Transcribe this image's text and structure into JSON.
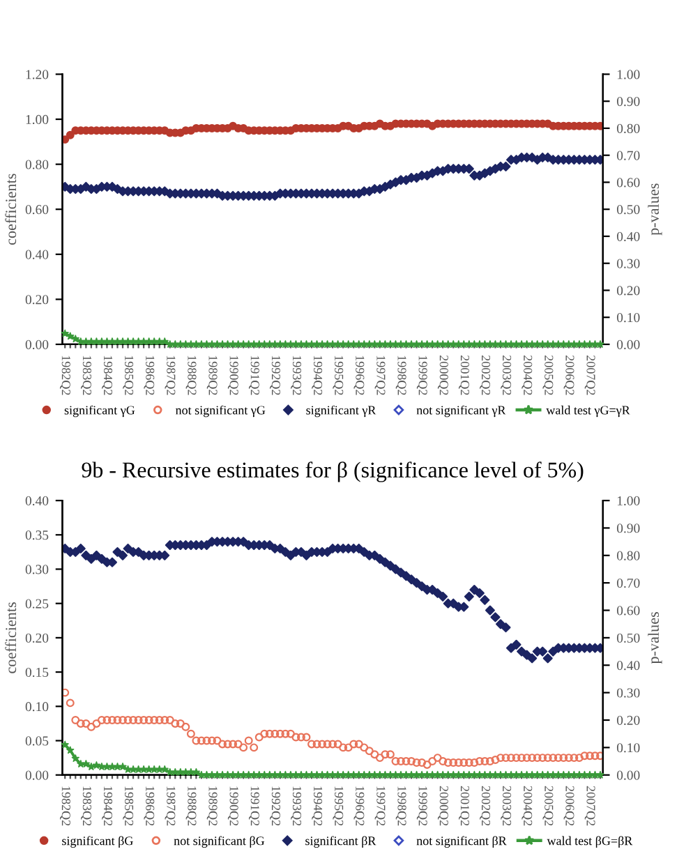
{
  "chart_data": [
    {
      "type": "scatter",
      "ylabel": "coefficients",
      "y2label": "p-values",
      "legend": "bottom",
      "grid": false,
      "categories": [
        "1982Q2",
        null,
        null,
        null,
        "1983Q2",
        null,
        null,
        null,
        "1984Q2",
        null,
        null,
        null,
        "1985Q2",
        null,
        null,
        null,
        "1986Q2",
        null,
        null,
        null,
        "1987Q2",
        null,
        null,
        null,
        "1988Q2",
        null,
        null,
        null,
        "1989Q2",
        null,
        null,
        null,
        "1990Q2",
        null,
        null,
        null,
        "1991Q2",
        null,
        null,
        null,
        "1992Q2",
        null,
        null,
        null,
        "1993Q2",
        null,
        null,
        null,
        "1994Q2",
        null,
        null,
        null,
        "1995Q2",
        null,
        null,
        null,
        "1996Q2",
        null,
        null,
        null,
        "1997Q2",
        null,
        null,
        null,
        "1998Q2",
        null,
        null,
        null,
        "1999Q2",
        null,
        null,
        null,
        "2000Q2",
        null,
        null,
        null,
        "2001Q2",
        null,
        null,
        null,
        "2002Q2",
        null,
        null,
        null,
        "2003Q2",
        null,
        null,
        null,
        "2004Q2",
        null,
        null,
        null,
        "2005Q2",
        null,
        null,
        null,
        "2006Q2",
        null,
        null,
        null,
        "2007Q2",
        null,
        null
      ],
      "ylim": [
        0,
        1.2
      ],
      "yticks": [
        {
          "value": 0,
          "label": "0.00"
        },
        {
          "value": 0.2,
          "label": "0.20"
        },
        {
          "value": 0.4,
          "label": "0.40"
        },
        {
          "value": 0.6,
          "label": "0.60"
        },
        {
          "value": 0.8,
          "label": "0.80"
        },
        {
          "value": 1.0,
          "label": "1.00"
        },
        {
          "value": 1.2,
          "label": "1.20"
        }
      ],
      "y2lim": [
        0,
        1.0
      ],
      "y2ticks": [
        {
          "value": 0,
          "label": "0.00"
        },
        {
          "value": 0.1,
          "label": "0.10"
        },
        {
          "value": 0.2,
          "label": "0.20"
        },
        {
          "value": 0.3,
          "label": "0.30"
        },
        {
          "value": 0.4,
          "label": "0.40"
        },
        {
          "value": 0.5,
          "label": "0.50"
        },
        {
          "value": 0.6,
          "label": "0.60"
        },
        {
          "value": 0.7,
          "label": "0.70"
        },
        {
          "value": 0.8,
          "label": "0.80"
        },
        {
          "value": 0.9,
          "label": "0.90"
        },
        {
          "value": 1.0,
          "label": "1.00"
        }
      ],
      "series": [
        {
          "name": "significant γG",
          "marker": "circle",
          "color": "#b8392c",
          "values": [
            0.91,
            0.93,
            0.95,
            0.95,
            0.95,
            0.95,
            0.95,
            0.95,
            0.95,
            0.95,
            0.95,
            0.95,
            0.95,
            0.95,
            0.95,
            0.95,
            0.95,
            0.95,
            0.95,
            0.95,
            0.94,
            0.94,
            0.94,
            0.95,
            0.95,
            0.96,
            0.96,
            0.96,
            0.96,
            0.96,
            0.96,
            0.96,
            0.97,
            0.96,
            0.96,
            0.95,
            0.95,
            0.95,
            0.95,
            0.95,
            0.95,
            0.95,
            0.95,
            0.95,
            0.96,
            0.96,
            0.96,
            0.96,
            0.96,
            0.96,
            0.96,
            0.96,
            0.96,
            0.97,
            0.97,
            0.96,
            0.96,
            0.97,
            0.97,
            0.97,
            0.98,
            0.97,
            0.97,
            0.98,
            0.98,
            0.98,
            0.98,
            0.98,
            0.98,
            0.98,
            0.97,
            0.98,
            0.98,
            0.98,
            0.98,
            0.98,
            0.98,
            0.98,
            0.98,
            0.98,
            0.98,
            0.98,
            0.98,
            0.98,
            0.98,
            0.98,
            0.98,
            0.98,
            0.98,
            0.98,
            0.98,
            0.98,
            0.98,
            0.97,
            0.97,
            0.97,
            0.97,
            0.97,
            0.97,
            0.97,
            0.97,
            0.97,
            0.97
          ]
        },
        {
          "name": "not significant γG",
          "marker": "circle",
          "color": "#e8735a",
          "values": [
            null,
            null,
            null,
            null,
            null,
            null,
            null,
            null,
            null,
            null,
            null,
            null,
            null,
            null,
            null,
            null,
            null,
            null,
            null,
            null,
            null,
            null,
            null,
            null,
            null,
            null,
            null,
            null,
            null,
            null,
            null,
            null,
            null,
            null,
            null,
            null,
            null,
            null,
            null,
            null,
            null,
            null,
            null,
            null,
            null,
            null,
            null,
            null,
            null,
            null,
            null,
            null,
            null,
            null,
            null,
            null,
            null,
            null,
            null,
            null,
            null,
            null,
            null,
            null,
            null,
            null,
            null,
            null,
            null,
            null,
            null,
            null,
            null,
            null,
            null,
            null,
            null,
            null,
            null,
            null,
            null,
            null,
            null,
            null,
            null,
            null,
            null,
            null,
            null,
            null,
            null,
            null,
            null,
            null,
            null,
            null,
            null,
            null,
            null,
            null,
            null,
            null,
            null
          ]
        },
        {
          "name": "significant γR",
          "marker": "diamond",
          "color": "#1c2463",
          "values": [
            0.7,
            0.69,
            0.69,
            0.69,
            0.7,
            0.69,
            0.69,
            0.7,
            0.7,
            0.7,
            0.69,
            0.68,
            0.68,
            0.68,
            0.68,
            0.68,
            0.68,
            0.68,
            0.68,
            0.68,
            0.67,
            0.67,
            0.67,
            0.67,
            0.67,
            0.67,
            0.67,
            0.67,
            0.67,
            0.67,
            0.66,
            0.66,
            0.66,
            0.66,
            0.66,
            0.66,
            0.66,
            0.66,
            0.66,
            0.66,
            0.66,
            0.67,
            0.67,
            0.67,
            0.67,
            0.67,
            0.67,
            0.67,
            0.67,
            0.67,
            0.67,
            0.67,
            0.67,
            0.67,
            0.67,
            0.67,
            0.67,
            0.68,
            0.68,
            0.69,
            0.69,
            0.7,
            0.71,
            0.72,
            0.73,
            0.73,
            0.74,
            0.74,
            0.75,
            0.75,
            0.76,
            0.77,
            0.77,
            0.78,
            0.78,
            0.78,
            0.78,
            0.78,
            0.75,
            0.75,
            0.76,
            0.77,
            0.78,
            0.79,
            0.79,
            0.82,
            0.82,
            0.83,
            0.83,
            0.83,
            0.82,
            0.83,
            0.83,
            0.82,
            0.82,
            0.82,
            0.82,
            0.82,
            0.82,
            0.82,
            0.82,
            0.82,
            0.82
          ]
        },
        {
          "name": "not significant γR",
          "marker": "diamond",
          "color": "#3b4cc0",
          "values": [
            null,
            null,
            null,
            null,
            null,
            null,
            null,
            null,
            null,
            null,
            null,
            null,
            null,
            null,
            null,
            null,
            null,
            null,
            null,
            null,
            null,
            null,
            null,
            null,
            null,
            null,
            null,
            null,
            null,
            null,
            null,
            null,
            null,
            null,
            null,
            null,
            null,
            null,
            null,
            null,
            null,
            null,
            null,
            null,
            null,
            null,
            null,
            null,
            null,
            null,
            null,
            null,
            null,
            null,
            null,
            null,
            null,
            null,
            null,
            null,
            null,
            null,
            null,
            null,
            null,
            null,
            null,
            null,
            null,
            null,
            null,
            null,
            null,
            null,
            null,
            null,
            null,
            null,
            null,
            null,
            null,
            null,
            null,
            null,
            null,
            null,
            null,
            null,
            null,
            null,
            null,
            null,
            null,
            null,
            null,
            null,
            null,
            null,
            null,
            null,
            null,
            null,
            null
          ]
        },
        {
          "name": "wald test γG=γR",
          "type": "line",
          "axis": "y2",
          "marker": "star",
          "line_style": "solid",
          "color": "#3a9a3a",
          "values": [
            0.04,
            0.03,
            0.02,
            0.01,
            0.01,
            0.01,
            0.01,
            0.01,
            0.01,
            0.01,
            0.01,
            0.01,
            0.01,
            0.01,
            0.01,
            0.01,
            0.01,
            0.01,
            0.01,
            0.01,
            0.0,
            0.0,
            0.0,
            0.0,
            0.0,
            0.0,
            0.0,
            0.0,
            0.0,
            0.0,
            0.0,
            0.0,
            0.0,
            0.0,
            0.0,
            0.0,
            0.0,
            0.0,
            0.0,
            0.0,
            0.0,
            0.0,
            0.0,
            0.0,
            0.0,
            0.0,
            0.0,
            0.0,
            0.0,
            0.0,
            0.0,
            0.0,
            0.0,
            0.0,
            0.0,
            0.0,
            0.0,
            0.0,
            0.0,
            0.0,
            0.0,
            0.0,
            0.0,
            0.0,
            0.0,
            0.0,
            0.0,
            0.0,
            0.0,
            0.0,
            0.0,
            0.0,
            0.0,
            0.0,
            0.0,
            0.0,
            0.0,
            0.0,
            0.0,
            0.0,
            0.0,
            0.0,
            0.0,
            0.0,
            0.0,
            0.0,
            0.0,
            0.0,
            0.0,
            0.0,
            0.0,
            0.0,
            0.0,
            0.0,
            0.0,
            0.0,
            0.0,
            0.0,
            0.0,
            0.0,
            0.0,
            0.0,
            0.0
          ]
        }
      ]
    },
    {
      "type": "scatter",
      "title": "9b - Recursive estimates for β (significance level of 5%)",
      "ylabel": "coefficients",
      "y2label": "p-values",
      "legend": "bottom",
      "grid": false,
      "categories": [
        "1982Q2",
        null,
        null,
        null,
        "1983Q2",
        null,
        null,
        null,
        "1984Q2",
        null,
        null,
        null,
        "1985Q2",
        null,
        null,
        null,
        "1986Q2",
        null,
        null,
        null,
        "1987Q2",
        null,
        null,
        null,
        "1988Q2",
        null,
        null,
        null,
        "1989Q2",
        null,
        null,
        null,
        "1990Q2",
        null,
        null,
        null,
        "1991Q2",
        null,
        null,
        null,
        "1992Q2",
        null,
        null,
        null,
        "1993Q2",
        null,
        null,
        null,
        "1994Q2",
        null,
        null,
        null,
        "1995Q2",
        null,
        null,
        null,
        "1996Q2",
        null,
        null,
        null,
        "1997Q2",
        null,
        null,
        null,
        "1998Q2",
        null,
        null,
        null,
        "1999Q2",
        null,
        null,
        null,
        "2000Q2",
        null,
        null,
        null,
        "2001Q2",
        null,
        null,
        null,
        "2002Q2",
        null,
        null,
        null,
        "2003Q2",
        null,
        null,
        null,
        "2004Q2",
        null,
        null,
        null,
        "2005Q2",
        null,
        null,
        null,
        "2006Q2",
        null,
        null,
        null,
        "2007Q2",
        null,
        null
      ],
      "ylim": [
        0,
        0.4
      ],
      "yticks": [
        {
          "value": 0,
          "label": "0.00"
        },
        {
          "value": 0.05,
          "label": "0.05"
        },
        {
          "value": 0.1,
          "label": "0.10"
        },
        {
          "value": 0.15,
          "label": "0.15"
        },
        {
          "value": 0.2,
          "label": "0.20"
        },
        {
          "value": 0.25,
          "label": "0.25"
        },
        {
          "value": 0.3,
          "label": "0.30"
        },
        {
          "value": 0.35,
          "label": "0.35"
        },
        {
          "value": 0.4,
          "label": "0.40"
        }
      ],
      "y2lim": [
        0,
        1.0
      ],
      "y2ticks": [
        {
          "value": 0,
          "label": "0.00"
        },
        {
          "value": 0.1,
          "label": "0.10"
        },
        {
          "value": 0.2,
          "label": "0.20"
        },
        {
          "value": 0.3,
          "label": "0.30"
        },
        {
          "value": 0.4,
          "label": "0.40"
        },
        {
          "value": 0.5,
          "label": "0.50"
        },
        {
          "value": 0.6,
          "label": "0.60"
        },
        {
          "value": 0.7,
          "label": "0.70"
        },
        {
          "value": 0.8,
          "label": "0.80"
        },
        {
          "value": 0.9,
          "label": "0.90"
        },
        {
          "value": 1.0,
          "label": "1.00"
        }
      ],
      "series": [
        {
          "name": "significant βG",
          "marker": "circle",
          "color": "#b8392c",
          "values": [
            null,
            null,
            null,
            null,
            null,
            null,
            null,
            null,
            null,
            null,
            null,
            null,
            null,
            null,
            null,
            null,
            null,
            null,
            null,
            null,
            null,
            null,
            null,
            null,
            null,
            null,
            null,
            null,
            null,
            null,
            null,
            null,
            null,
            null,
            null,
            null,
            null,
            null,
            null,
            null,
            null,
            null,
            null,
            null,
            null,
            null,
            null,
            null,
            null,
            null,
            null,
            null,
            null,
            null,
            null,
            null,
            null,
            null,
            null,
            null,
            null,
            null,
            null,
            null,
            null,
            null,
            null,
            null,
            null,
            null,
            null,
            null,
            null,
            null,
            null,
            null,
            null,
            null,
            null,
            null,
            null,
            null,
            null,
            null,
            null,
            null,
            null,
            null,
            null,
            null,
            null,
            null,
            null,
            null,
            null,
            null,
            null,
            null,
            null,
            null,
            null,
            null,
            null
          ]
        },
        {
          "name": "not significant βG",
          "marker": "circle",
          "color": "#e8735a",
          "values": [
            0.12,
            0.105,
            0.08,
            0.075,
            0.075,
            0.07,
            0.075,
            0.08,
            0.08,
            0.08,
            0.08,
            0.08,
            0.08,
            0.08,
            0.08,
            0.08,
            0.08,
            0.08,
            0.08,
            0.08,
            0.08,
            0.075,
            0.075,
            0.07,
            0.06,
            0.05,
            0.05,
            0.05,
            0.05,
            0.05,
            0.045,
            0.045,
            0.045,
            0.045,
            0.04,
            0.05,
            0.04,
            0.055,
            0.06,
            0.06,
            0.06,
            0.06,
            0.06,
            0.06,
            0.055,
            0.055,
            0.055,
            0.045,
            0.045,
            0.045,
            0.045,
            0.045,
            0.045,
            0.04,
            0.04,
            0.045,
            0.045,
            0.04,
            0.035,
            0.03,
            0.025,
            0.03,
            0.03,
            0.02,
            0.02,
            0.02,
            0.02,
            0.018,
            0.018,
            0.015,
            0.02,
            0.025,
            0.02,
            0.018,
            0.018,
            0.018,
            0.018,
            0.018,
            0.018,
            0.02,
            0.02,
            0.02,
            0.022,
            0.025,
            0.025,
            0.025,
            0.025,
            0.025,
            0.025,
            0.025,
            0.025,
            0.025,
            0.025,
            0.025,
            0.025,
            0.025,
            0.025,
            0.025,
            0.025,
            0.028,
            0.028,
            0.028,
            0.028
          ]
        },
        {
          "name": "significant βR",
          "marker": "diamond",
          "color": "#1c2463",
          "values": [
            0.33,
            0.325,
            0.325,
            0.33,
            0.32,
            0.315,
            0.32,
            0.315,
            0.31,
            0.31,
            0.325,
            0.32,
            0.33,
            0.325,
            0.325,
            0.32,
            0.32,
            0.32,
            0.32,
            0.32,
            0.335,
            0.335,
            0.335,
            0.335,
            0.335,
            0.335,
            0.335,
            0.335,
            0.34,
            0.34,
            0.34,
            0.34,
            0.34,
            0.34,
            0.34,
            0.335,
            0.335,
            0.335,
            0.335,
            0.335,
            0.33,
            0.33,
            0.325,
            0.32,
            0.325,
            0.325,
            0.32,
            0.325,
            0.325,
            0.325,
            0.325,
            0.33,
            0.33,
            0.33,
            0.33,
            0.33,
            0.33,
            0.325,
            0.32,
            0.32,
            0.315,
            0.31,
            0.305,
            0.3,
            0.295,
            0.29,
            0.285,
            0.28,
            0.275,
            0.27,
            0.27,
            0.265,
            0.26,
            0.25,
            0.25,
            0.245,
            0.245,
            0.26,
            0.27,
            0.265,
            0.255,
            0.24,
            0.23,
            0.22,
            0.215,
            0.185,
            0.19,
            0.18,
            0.175,
            0.17,
            0.18,
            0.18,
            0.17,
            0.18,
            0.185,
            0.185,
            0.185,
            0.185,
            0.185,
            0.185,
            0.185,
            0.185,
            0.185
          ]
        },
        {
          "name": "not significant βR",
          "marker": "diamond",
          "color": "#3b4cc0",
          "values": [
            null,
            null,
            null,
            null,
            null,
            null,
            null,
            null,
            null,
            null,
            null,
            null,
            null,
            null,
            null,
            null,
            null,
            null,
            null,
            null,
            null,
            null,
            null,
            null,
            null,
            null,
            null,
            null,
            null,
            null,
            null,
            null,
            null,
            null,
            null,
            null,
            null,
            null,
            null,
            null,
            null,
            null,
            null,
            null,
            null,
            null,
            null,
            null,
            null,
            null,
            null,
            null,
            null,
            null,
            null,
            null,
            null,
            null,
            null,
            null,
            null,
            null,
            null,
            null,
            null,
            null,
            null,
            null,
            null,
            null,
            null,
            null,
            null,
            null,
            null,
            null,
            null,
            null,
            null,
            null,
            null,
            null,
            null,
            null,
            null,
            null,
            null,
            null,
            null,
            null,
            null,
            null,
            null,
            null,
            null,
            null,
            null,
            null,
            null,
            null,
            null,
            null,
            null
          ]
        },
        {
          "name": "wald test βG=βR",
          "type": "line",
          "axis": "y2",
          "marker": "star",
          "line_style": "solid",
          "color": "#3a9a3a",
          "values": [
            0.11,
            0.09,
            0.06,
            0.04,
            0.04,
            0.03,
            0.035,
            0.03,
            0.03,
            0.03,
            0.03,
            0.03,
            0.02,
            0.02,
            0.02,
            0.02,
            0.02,
            0.02,
            0.02,
            0.02,
            0.01,
            0.01,
            0.01,
            0.01,
            0.01,
            0.01,
            0.0,
            0.0,
            0.0,
            0.0,
            0.0,
            0.0,
            0.0,
            0.0,
            0.0,
            0.0,
            0.0,
            0.0,
            0.0,
            0.0,
            0.0,
            0.0,
            0.0,
            0.0,
            0.0,
            0.0,
            0.0,
            0.0,
            0.0,
            0.0,
            0.0,
            0.0,
            0.0,
            0.0,
            0.0,
            0.0,
            0.0,
            0.0,
            0.0,
            0.0,
            0.0,
            0.0,
            0.0,
            0.0,
            0.0,
            0.0,
            0.0,
            0.0,
            0.0,
            0.0,
            0.0,
            0.0,
            0.0,
            0.0,
            0.0,
            0.0,
            0.0,
            0.0,
            0.0,
            0.0,
            0.0,
            0.0,
            0.0,
            0.0,
            0.0,
            0.0,
            0.0,
            0.0,
            0.0,
            0.0,
            0.0,
            0.0,
            0.0,
            0.0,
            0.0,
            0.0,
            0.0,
            0.0,
            0.0,
            0.0,
            0.0,
            0.0,
            0.0
          ]
        }
      ]
    }
  ]
}
